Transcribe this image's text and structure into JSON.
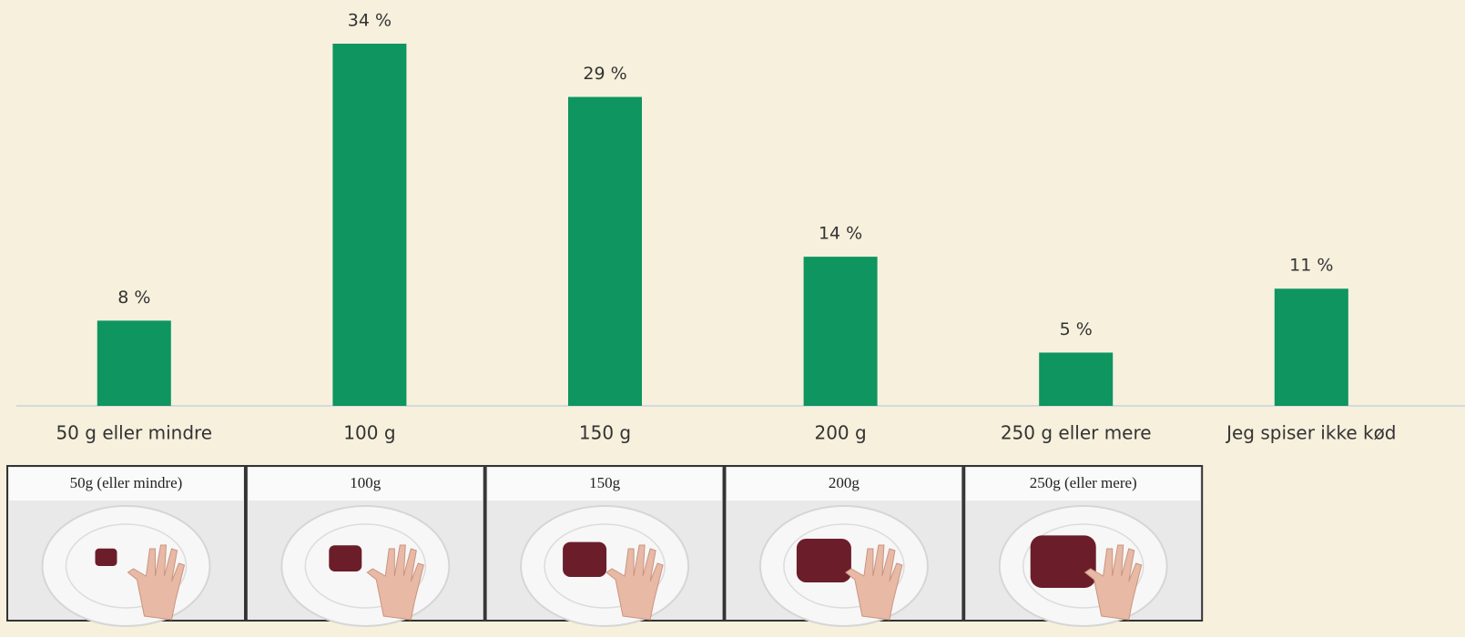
{
  "chart_data": {
    "type": "bar",
    "categories": [
      "50 g eller mindre",
      "100 g",
      "150 g",
      "200 g",
      "250 g eller mere",
      "Jeg spiser ikke kød"
    ],
    "values": [
      8,
      34,
      29,
      14,
      5,
      11
    ],
    "value_labels": [
      "8 %",
      "34 %",
      "29 %",
      "14 %",
      "5 %",
      "11 %"
    ],
    "color": "#0e9560"
  },
  "images": [
    "50g (eller mindre)",
    "100g",
    "150g",
    "200g",
    "250g (eller mere)"
  ]
}
